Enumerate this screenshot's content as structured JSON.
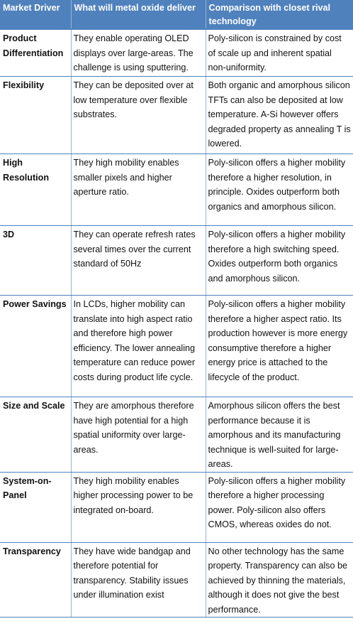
{
  "headers": [
    "Market Driver",
    "What will metal oxide deliver",
    "Comparison with closet rival technology"
  ],
  "rows": [
    {
      "driver": "Product Differentiation",
      "deliver": "They enable operating OLED displays over large-areas.  The challenge is using sputtering.",
      "comparison": "Poly-silicon is constrained by cost of scale up and inherent spatial non-uniformity."
    },
    {
      "driver": "Flexibility",
      "deliver": "They can be deposited over at low temperature over flexible substrates.",
      "comparison": "Both organic and amorphous silicon TFTs can also be deposited at low temperature. A-Si however offers degraded property as annealing T is lowered."
    },
    {
      "driver": "High Resolution",
      "deliver": "They high mobility enables smaller pixels and higher aperture ratio.",
      "comparison": "Poly-silicon offers a higher mobility therefore a higher resolution, in principle. Oxides outperform both organics and amorphous silicon."
    },
    {
      "driver": "3D",
      "deliver": "They can operate refresh rates several times over the current standard of 50Hz",
      "comparison": "Poly-silicon offers a higher mobility therefore a high switching speed. Oxides outperform both organics and amorphous silicon."
    },
    {
      "driver": "Power Savings",
      "deliver": "In LCDs, higher mobility can translate into high aspect ratio and therefore high power efficiency.  The lower annealing temperature can reduce power costs during product life cycle.",
      "comparison": "Poly-silicon offers a higher mobility therefore a higher aspect ratio. Its production however is more energy consumptive therefore a higher energy price is attached to the lifecycle of the product."
    },
    {
      "driver": "Size and Scale",
      "deliver": "They are amorphous therefore have high potential for a high spatial uniformity over large-areas.",
      "comparison": "Amorphous silicon offers the best performance because it is amorphous and its manufacturing technique is well-suited for large-areas."
    },
    {
      "driver": "System-on-Panel",
      "deliver": "They high mobility enables higher processing power to be integrated on-board.",
      "comparison": "Poly-silicon offers a higher mobility therefore a higher processing power. Poly-silicon also offers CMOS, whereas oxides do not."
    },
    {
      "driver": "Transparency",
      "deliver": "They have wide bandgap and therefore potential for transparency. Stability issues under illumination exist",
      "comparison": "No other technology has the same property. Transparency can also be achieved by thinning the materials, although it does not give the best performance."
    }
  ],
  "colors": {
    "header_background": "#4f81bd",
    "header_text": "#ffffff",
    "row_divider": "#4f81bd"
  }
}
